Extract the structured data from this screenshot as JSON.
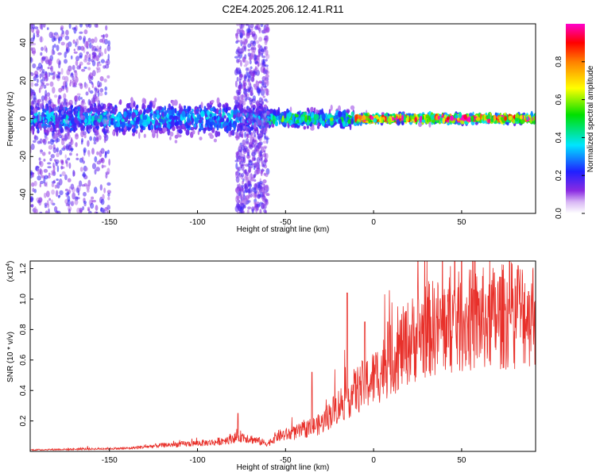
{
  "title": "C2E4.2025.206.12.41.R11",
  "chart_data": [
    {
      "type": "heatmap",
      "xlabel": "Height of straight line (km)",
      "ylabel": "Frequency (Hz)",
      "xlim": [
        -195,
        92
      ],
      "ylim": [
        -50,
        50
      ],
      "xticks": [
        -150,
        -100,
        -50,
        0,
        50
      ],
      "yticks": [
        -40,
        -20,
        0,
        20,
        40
      ],
      "colorbar": {
        "label": "Normalized spectral amplitude",
        "range": [
          0,
          1
        ],
        "ticks": [
          0.0,
          0.2,
          0.4,
          0.6,
          0.8
        ],
        "colormap": "rainbow (white-violet-blue-cyan-green-yellow-red-magenta)"
      },
      "features": [
        {
          "x_from": -195,
          "x_to": -60,
          "freq_center": 0,
          "freq_halfwidth": 8,
          "amplitude": 0.3
        },
        {
          "x_from": -60,
          "x_to": -10,
          "freq_center": 0,
          "freq_halfwidth": 4,
          "amplitude": 0.45
        },
        {
          "x_from": -10,
          "x_to": 92,
          "freq_center": 0,
          "freq_halfwidth": 2,
          "amplitude": 0.85
        },
        {
          "x_from": -195,
          "x_to": -150,
          "freq_center": 0,
          "freq_halfwidth": 50,
          "amplitude": 0.15
        },
        {
          "x_from": -78,
          "x_to": -60,
          "freq_center": 0,
          "freq_halfwidth": 50,
          "amplitude": 0.15
        }
      ]
    },
    {
      "type": "line",
      "xlabel": "Height of straight line (km)",
      "ylabel": "SNR (10 * v/v)",
      "y_multiplier": "(x10",
      "y_multiplier_exp": "4",
      "xlim": [
        -195,
        92
      ],
      "ylim": [
        0,
        1.25
      ],
      "xticks": [
        -150,
        -100,
        -50,
        0,
        50
      ],
      "yticks": [
        0.2,
        0.4,
        0.6,
        0.8,
        1.0,
        1.2
      ],
      "color": "#e8302a",
      "trend": [
        {
          "x": -195,
          "y": 0.01
        },
        {
          "x": -140,
          "y": 0.02
        },
        {
          "x": -120,
          "y": 0.04
        },
        {
          "x": -90,
          "y": 0.06
        },
        {
          "x": -75,
          "y": 0.1
        },
        {
          "x": -60,
          "y": 0.05
        },
        {
          "x": -55,
          "y": 0.1
        },
        {
          "x": -45,
          "y": 0.12
        },
        {
          "x": -30,
          "y": 0.18
        },
        {
          "x": -20,
          "y": 0.3
        },
        {
          "x": -10,
          "y": 0.4
        },
        {
          "x": 0,
          "y": 0.48
        },
        {
          "x": 10,
          "y": 0.6
        },
        {
          "x": 20,
          "y": 0.72
        },
        {
          "x": 30,
          "y": 0.8
        },
        {
          "x": 50,
          "y": 0.85
        },
        {
          "x": 70,
          "y": 0.88
        },
        {
          "x": 92,
          "y": 0.92
        }
      ],
      "spikes": [
        {
          "x": -77,
          "y": 0.25
        },
        {
          "x": -35,
          "y": 0.52
        },
        {
          "x": -15,
          "y": 1.04
        },
        {
          "x": -5,
          "y": 0.85
        },
        {
          "x": 8,
          "y": 0.85
        },
        {
          "x": 65,
          "y": 1.02
        },
        {
          "x": 82,
          "y": 1.22
        },
        {
          "x": 88,
          "y": 1.05
        }
      ]
    }
  ]
}
